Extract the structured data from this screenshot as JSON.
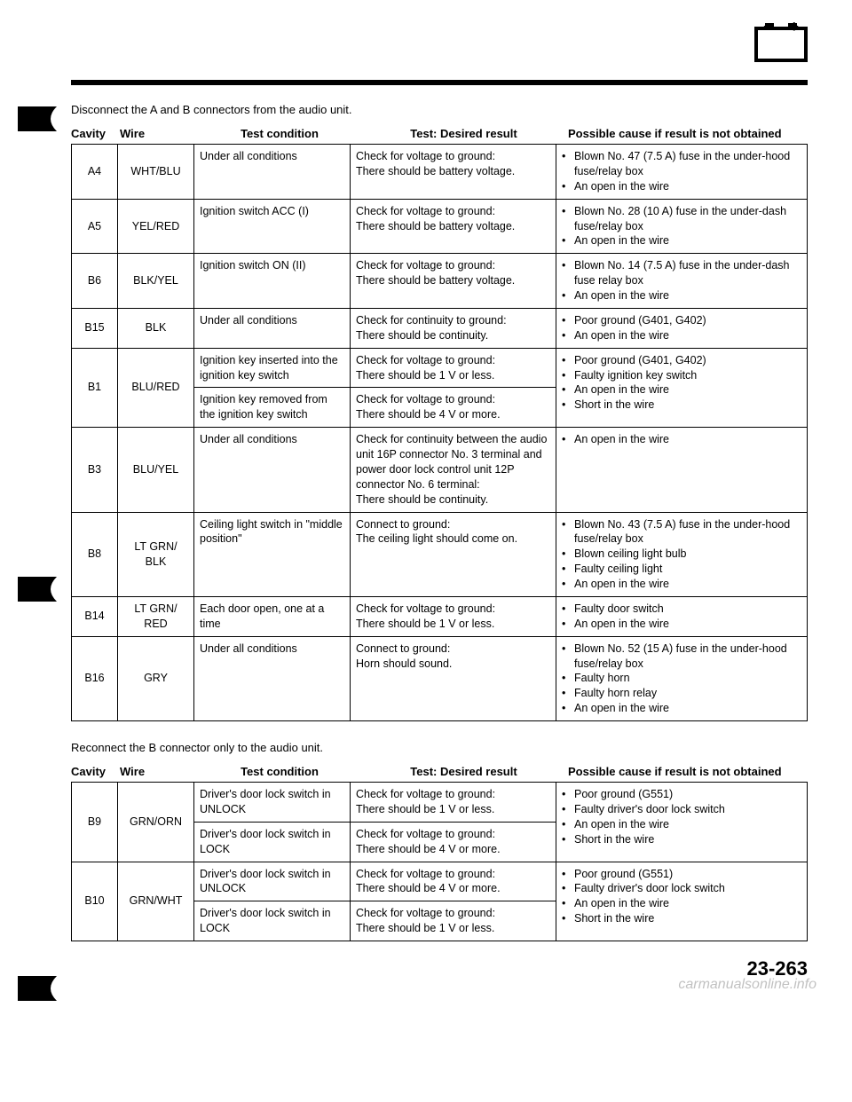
{
  "instruction1": "Disconnect the A and B connectors from the audio unit.",
  "instruction2": "Reconnect the B connector only to the audio unit.",
  "headers": {
    "cavity": "Cavity",
    "wire": "Wire",
    "cond": "Test condition",
    "result": "Test: Desired result",
    "cause": "Possible cause if result is not obtained"
  },
  "table1": [
    {
      "cavity": "A4",
      "wire": "WHT/BLU",
      "rows": [
        {
          "cond": "Under all conditions",
          "result": "Check for voltage to ground:\nThere should be battery voltage.",
          "causes": [
            "Blown No. 47 (7.5 A) fuse in the under-hood fuse/relay box",
            "An open in the wire"
          ]
        }
      ]
    },
    {
      "cavity": "A5",
      "wire": "YEL/RED",
      "rows": [
        {
          "cond": "Ignition switch ACC (I)",
          "result": "Check for voltage to ground:\nThere should be battery voltage.",
          "causes": [
            "Blown No. 28 (10 A) fuse in the under-dash fuse/relay box",
            "An open in the wire"
          ]
        }
      ]
    },
    {
      "cavity": "B6",
      "wire": "BLK/YEL",
      "rows": [
        {
          "cond": "Ignition switch ON (II)",
          "result": "Check for voltage to ground:\nThere should be battery voltage.",
          "causes": [
            "Blown No. 14 (7.5 A) fuse in the under-dash fuse relay box",
            "An open in the wire"
          ]
        }
      ]
    },
    {
      "cavity": "B15",
      "wire": "BLK",
      "rows": [
        {
          "cond": "Under all conditions",
          "result": "Check for continuity to ground:\nThere should be continuity.",
          "causes": [
            "Poor ground (G401, G402)",
            "An open in the wire"
          ]
        }
      ]
    },
    {
      "cavity": "B1",
      "wire": "BLU/RED",
      "rows": [
        {
          "cond": "Ignition key inserted into the ignition key switch",
          "result": "Check for voltage to ground:\nThere should be 1 V or less."
        },
        {
          "cond": "Ignition key removed from the ignition key switch",
          "result": "Check for voltage to ground:\nThere should be 4 V or more."
        }
      ],
      "sharedCauses": [
        "Poor ground (G401, G402)",
        "Faulty ignition key switch",
        "An open in the wire",
        "Short in the wire"
      ]
    },
    {
      "cavity": "B3",
      "wire": "BLU/YEL",
      "rows": [
        {
          "cond": "Under all conditions",
          "result": "Check for continuity between the audio unit 16P connector No. 3 terminal and power door lock control unit 12P connector No. 6 terminal:\nThere should be continuity.",
          "causes": [
            "An open in the wire"
          ]
        }
      ]
    },
    {
      "cavity": "B8",
      "wire": "LT GRN/\nBLK",
      "rows": [
        {
          "cond": "Ceiling light switch in \"middle position\"",
          "result": "Connect to ground:\nThe ceiling light should come on.",
          "causes": [
            "Blown No. 43 (7.5 A) fuse in the under-hood fuse/relay box",
            "Blown ceiling light bulb",
            "Faulty ceiling light",
            "An open in the wire"
          ]
        }
      ]
    },
    {
      "cavity": "B14",
      "wire": "LT GRN/\nRED",
      "rows": [
        {
          "cond": "Each door open, one at a time",
          "result": "Check for voltage to ground:\nThere should be 1 V or less.",
          "causes": [
            "Faulty door switch",
            "An open in the wire"
          ]
        }
      ]
    },
    {
      "cavity": "B16",
      "wire": "GRY",
      "rows": [
        {
          "cond": "Under all conditions",
          "result": "Connect to ground:\nHorn should sound.",
          "causes": [
            "Blown No. 52 (15 A) fuse in the under-hood fuse/relay box",
            "Faulty horn",
            "Faulty horn relay",
            "An open in the wire"
          ]
        }
      ]
    }
  ],
  "table2": [
    {
      "cavity": "B9",
      "wire": "GRN/ORN",
      "rows": [
        {
          "cond": "Driver's door lock switch in UNLOCK",
          "result": "Check for voltage to ground:\nThere should be 1 V or less."
        },
        {
          "cond": "Driver's door lock switch in LOCK",
          "result": "Check for voltage to ground:\nThere should be 4 V or more."
        }
      ],
      "sharedCauses": [
        "Poor ground (G551)",
        "Faulty driver's door lock switch",
        "An open in the wire",
        "Short in the wire"
      ]
    },
    {
      "cavity": "B10",
      "wire": "GRN/WHT",
      "rows": [
        {
          "cond": "Driver's door lock switch in UNLOCK",
          "result": "Check for voltage to ground:\nThere should be 4 V or more."
        },
        {
          "cond": "Driver's door lock switch in LOCK",
          "result": "Check for voltage to ground:\nThere should be 1 V or less."
        }
      ],
      "sharedCauses": [
        "Poor ground (G551)",
        "Faulty driver's door lock switch",
        "An open in the wire",
        "Short in the wire"
      ]
    }
  ],
  "pageNum": "23-263",
  "watermark": "carmanualsonline.info"
}
